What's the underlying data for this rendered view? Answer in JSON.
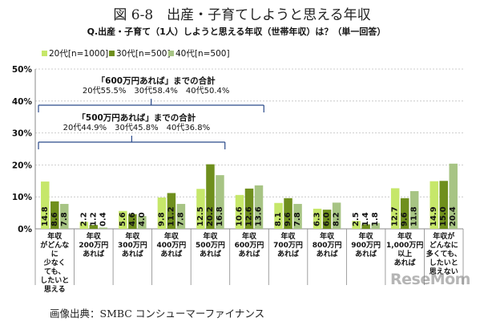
{
  "figure_title": "図 6-8　出産・子育てしようと思える年収",
  "source": "画像出典：SMBC コンシューマーファイナンス",
  "watermark": "ReseMom",
  "colors": {
    "s20": "#c6e76a",
    "s30": "#6f8f1d",
    "s40": "#a7c484",
    "axis": "#888888",
    "grid": "#bfbfbf",
    "bracket": "#2a4a8a"
  },
  "chart_data": {
    "type": "bar",
    "title": "Q.出産・子育て（1人）しようと思える年収（世帯年収）は？（単一回答）",
    "xlabel": "",
    "ylabel": "",
    "ylim": [
      0,
      50
    ],
    "y_ticks": [
      "0%",
      "10%",
      "20%",
      "30%",
      "40%",
      "50%"
    ],
    "grid": true,
    "legend_position": "top-left",
    "categories": [
      "年収がどんなに少なくても、したいと思える",
      "年収200万円あれば",
      "年収300万円あれば",
      "年収400万円あれば",
      "年収500万円あれば",
      "年収600万円あれば",
      "年収700万円あれば",
      "年収800万円あれば",
      "年収900万円あれば",
      "年収1,000万円以上あれば",
      "年収がどんなに多くても、したいと思えない"
    ],
    "category_lines": [
      [
        "年収",
        "がどんな",
        "に",
        "少なく",
        "ても、",
        "したいと",
        "思える"
      ],
      [
        "年収",
        "200万円",
        "あれば"
      ],
      [
        "年収",
        "300万円",
        "あれば"
      ],
      [
        "年収",
        "400万円",
        "あれば"
      ],
      [
        "年収",
        "500万円",
        "あれば"
      ],
      [
        "年収",
        "600万円",
        "あれば"
      ],
      [
        "年収",
        "700万円",
        "あれば"
      ],
      [
        "年収",
        "800万円",
        "あれば"
      ],
      [
        "年収",
        "900万円",
        "あれば"
      ],
      [
        "年収",
        "1,000万円",
        "以上",
        "あれば"
      ],
      [
        "年収が",
        "どんなに",
        "多くても、",
        "したいと",
        "思えない"
      ]
    ],
    "series": [
      {
        "name": "20代[n=1000]",
        "values": [
          14.8,
          2.2,
          5.6,
          9.8,
          12.5,
          10.6,
          8.1,
          6.3,
          2.5,
          12.7,
          14.9
        ]
      },
      {
        "name": "30代[n=500]",
        "values": [
          8.6,
          1.2,
          4.6,
          11.2,
          20.2,
          12.6,
          9.6,
          6.0,
          1.4,
          9.6,
          15.0
        ]
      },
      {
        "name": "40代[n=500]",
        "values": [
          7.8,
          0.4,
          4.0,
          7.8,
          16.8,
          13.6,
          7.8,
          8.2,
          1.8,
          11.8,
          20.4
        ]
      }
    ],
    "annotations": [
      {
        "label": "「600万円あれば」までの合計",
        "detail": "20代55.5%　30代58.4%　40代50.4%",
        "span_start_category": 0,
        "span_end_category": 5
      },
      {
        "label": "「500万円あれば」までの合計",
        "detail": "20代44.9%　30代45.8%　40代36.8%",
        "span_start_category": 0,
        "span_end_category": 4
      }
    ]
  }
}
